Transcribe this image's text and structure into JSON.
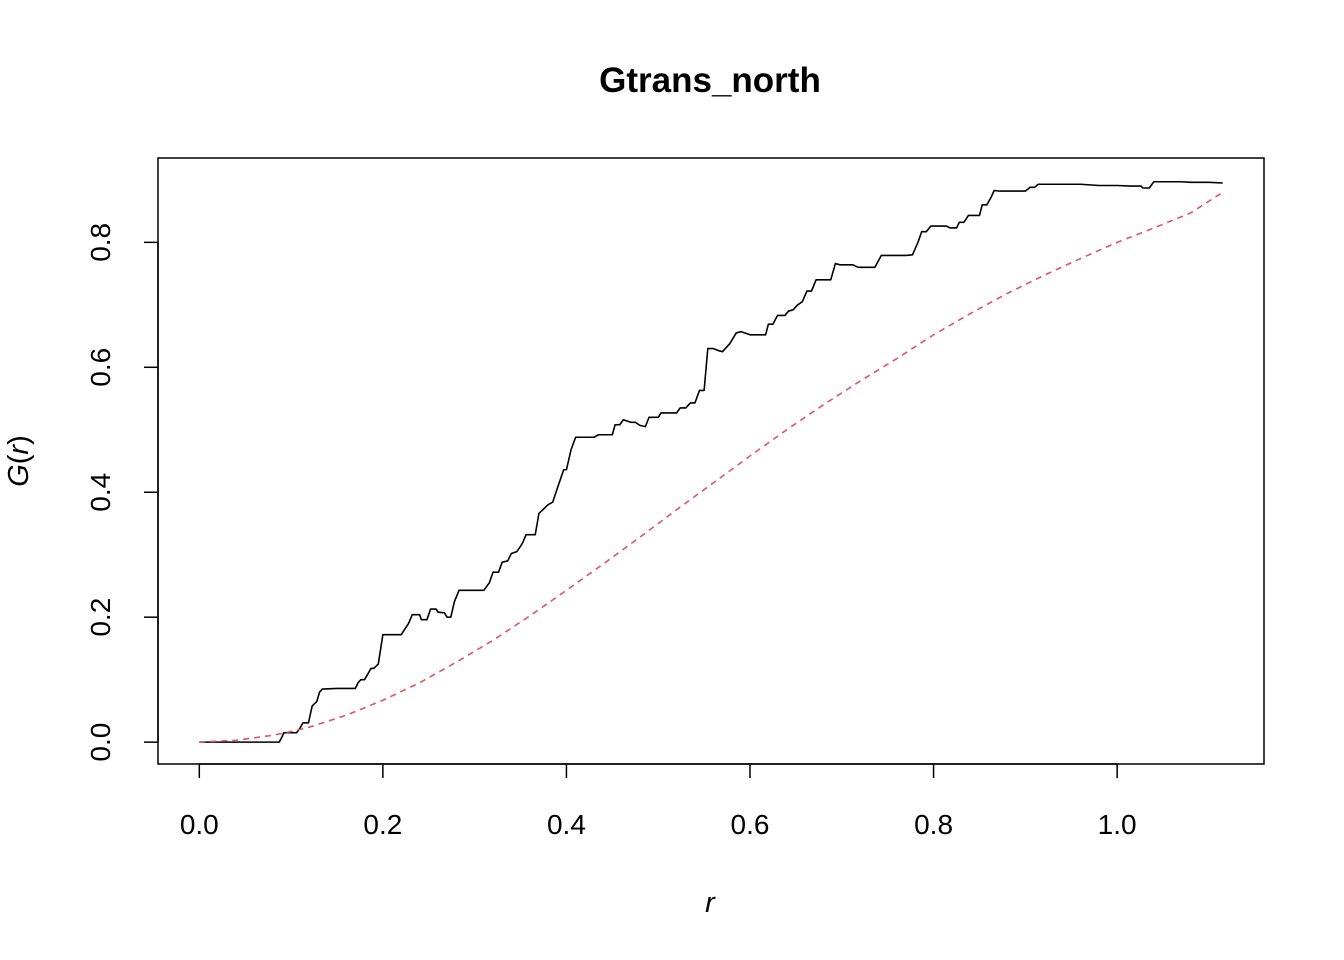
{
  "chart_data": {
    "type": "line",
    "title": "Gtrans_north",
    "xlabel": "r",
    "ylabel": {
      "fn": "G",
      "open": "(",
      "arg": "r",
      "close": ")"
    },
    "xlim": [
      -0.045,
      1.16
    ],
    "ylim": [
      -0.035,
      0.935
    ],
    "x_ticks": [
      {
        "value": 0.0,
        "label": "0.0"
      },
      {
        "value": 0.2,
        "label": "0.2"
      },
      {
        "value": 0.4,
        "label": "0.4"
      },
      {
        "value": 0.6,
        "label": "0.6"
      },
      {
        "value": 0.8,
        "label": "0.8"
      },
      {
        "value": 1.0,
        "label": "1.0"
      }
    ],
    "y_ticks": [
      {
        "value": 0.0,
        "label": "0.0"
      },
      {
        "value": 0.2,
        "label": "0.2"
      },
      {
        "value": 0.4,
        "label": "0.4"
      },
      {
        "value": 0.6,
        "label": "0.6"
      },
      {
        "value": 0.8,
        "label": "0.8"
      }
    ],
    "grid": false,
    "legend": "none",
    "series": [
      {
        "style": "solid",
        "color": "#000000",
        "points": [
          [
            0.0,
            0.0
          ],
          [
            0.087,
            0.0
          ],
          [
            0.09,
            0.008
          ],
          [
            0.092,
            0.015
          ],
          [
            0.106,
            0.015
          ],
          [
            0.11,
            0.023
          ],
          [
            0.113,
            0.031
          ],
          [
            0.119,
            0.031
          ],
          [
            0.121,
            0.045
          ],
          [
            0.123,
            0.058
          ],
          [
            0.128,
            0.065
          ],
          [
            0.131,
            0.08
          ],
          [
            0.134,
            0.085
          ],
          [
            0.15,
            0.086
          ],
          [
            0.17,
            0.086
          ],
          [
            0.173,
            0.095
          ],
          [
            0.176,
            0.1
          ],
          [
            0.18,
            0.1
          ],
          [
            0.184,
            0.11
          ],
          [
            0.187,
            0.118
          ],
          [
            0.19,
            0.118
          ],
          [
            0.195,
            0.125
          ],
          [
            0.2,
            0.172
          ],
          [
            0.22,
            0.172
          ],
          [
            0.228,
            0.19
          ],
          [
            0.232,
            0.204
          ],
          [
            0.24,
            0.204
          ],
          [
            0.242,
            0.196
          ],
          [
            0.248,
            0.196
          ],
          [
            0.252,
            0.213
          ],
          [
            0.258,
            0.213
          ],
          [
            0.26,
            0.208
          ],
          [
            0.267,
            0.207
          ],
          [
            0.27,
            0.2
          ],
          [
            0.274,
            0.2
          ],
          [
            0.278,
            0.225
          ],
          [
            0.283,
            0.243
          ],
          [
            0.31,
            0.243
          ],
          [
            0.316,
            0.255
          ],
          [
            0.32,
            0.272
          ],
          [
            0.326,
            0.272
          ],
          [
            0.33,
            0.288
          ],
          [
            0.336,
            0.29
          ],
          [
            0.34,
            0.302
          ],
          [
            0.346,
            0.305
          ],
          [
            0.352,
            0.318
          ],
          [
            0.356,
            0.332
          ],
          [
            0.366,
            0.332
          ],
          [
            0.37,
            0.366
          ],
          [
            0.38,
            0.38
          ],
          [
            0.385,
            0.384
          ],
          [
            0.39,
            0.406
          ],
          [
            0.397,
            0.436
          ],
          [
            0.4,
            0.436
          ],
          [
            0.405,
            0.468
          ],
          [
            0.41,
            0.488
          ],
          [
            0.43,
            0.488
          ],
          [
            0.435,
            0.492
          ],
          [
            0.45,
            0.492
          ],
          [
            0.453,
            0.508
          ],
          [
            0.458,
            0.508
          ],
          [
            0.462,
            0.516
          ],
          [
            0.47,
            0.512
          ],
          [
            0.475,
            0.512
          ],
          [
            0.48,
            0.507
          ],
          [
            0.486,
            0.505
          ],
          [
            0.49,
            0.52
          ],
          [
            0.5,
            0.52
          ],
          [
            0.503,
            0.527
          ],
          [
            0.52,
            0.527
          ],
          [
            0.524,
            0.535
          ],
          [
            0.53,
            0.535
          ],
          [
            0.535,
            0.543
          ],
          [
            0.54,
            0.543
          ],
          [
            0.545,
            0.563
          ],
          [
            0.55,
            0.563
          ],
          [
            0.554,
            0.63
          ],
          [
            0.56,
            0.63
          ],
          [
            0.565,
            0.627
          ],
          [
            0.57,
            0.625
          ],
          [
            0.578,
            0.638
          ],
          [
            0.585,
            0.655
          ],
          [
            0.59,
            0.657
          ],
          [
            0.6,
            0.652
          ],
          [
            0.617,
            0.652
          ],
          [
            0.62,
            0.669
          ],
          [
            0.625,
            0.669
          ],
          [
            0.63,
            0.683
          ],
          [
            0.638,
            0.683
          ],
          [
            0.642,
            0.69
          ],
          [
            0.647,
            0.692
          ],
          [
            0.652,
            0.7
          ],
          [
            0.657,
            0.705
          ],
          [
            0.662,
            0.722
          ],
          [
            0.667,
            0.722
          ],
          [
            0.672,
            0.74
          ],
          [
            0.688,
            0.74
          ],
          [
            0.693,
            0.766
          ],
          [
            0.698,
            0.764
          ],
          [
            0.712,
            0.764
          ],
          [
            0.718,
            0.76
          ],
          [
            0.736,
            0.76
          ],
          [
            0.743,
            0.779
          ],
          [
            0.77,
            0.779
          ],
          [
            0.777,
            0.78
          ],
          [
            0.783,
            0.8
          ],
          [
            0.787,
            0.817
          ],
          [
            0.792,
            0.817
          ],
          [
            0.797,
            0.826
          ],
          [
            0.814,
            0.826
          ],
          [
            0.818,
            0.823
          ],
          [
            0.825,
            0.823
          ],
          [
            0.828,
            0.832
          ],
          [
            0.833,
            0.832
          ],
          [
            0.838,
            0.843
          ],
          [
            0.85,
            0.843
          ],
          [
            0.853,
            0.86
          ],
          [
            0.858,
            0.86
          ],
          [
            0.863,
            0.873
          ],
          [
            0.866,
            0.883
          ],
          [
            0.872,
            0.882
          ],
          [
            0.9,
            0.882
          ],
          [
            0.905,
            0.888
          ],
          [
            0.91,
            0.888
          ],
          [
            0.914,
            0.893
          ],
          [
            0.96,
            0.893
          ],
          [
            0.98,
            0.891
          ],
          [
            1.0,
            0.891
          ],
          [
            1.015,
            0.89
          ],
          [
            1.026,
            0.89
          ],
          [
            1.028,
            0.887
          ],
          [
            1.035,
            0.887
          ],
          [
            1.04,
            0.897
          ],
          [
            1.07,
            0.897
          ],
          [
            1.08,
            0.896
          ],
          [
            1.1,
            0.896
          ],
          [
            1.115,
            0.895
          ]
        ]
      },
      {
        "style": "dashed",
        "color": "#DF536B",
        "points": [
          [
            0.0,
            0.0
          ],
          [
            0.04,
            0.003
          ],
          [
            0.08,
            0.011
          ],
          [
            0.1,
            0.017
          ],
          [
            0.12,
            0.024
          ],
          [
            0.16,
            0.043
          ],
          [
            0.2,
            0.067
          ],
          [
            0.24,
            0.095
          ],
          [
            0.28,
            0.128
          ],
          [
            0.32,
            0.163
          ],
          [
            0.36,
            0.202
          ],
          [
            0.4,
            0.243
          ],
          [
            0.44,
            0.285
          ],
          [
            0.48,
            0.328
          ],
          [
            0.52,
            0.372
          ],
          [
            0.56,
            0.415
          ],
          [
            0.6,
            0.458
          ],
          [
            0.64,
            0.5
          ],
          [
            0.68,
            0.54
          ],
          [
            0.72,
            0.578
          ],
          [
            0.76,
            0.614
          ],
          [
            0.8,
            0.652
          ],
          [
            0.84,
            0.686
          ],
          [
            0.88,
            0.718
          ],
          [
            0.92,
            0.747
          ],
          [
            0.96,
            0.774
          ],
          [
            1.0,
            0.8
          ],
          [
            1.04,
            0.823
          ],
          [
            1.08,
            0.847
          ],
          [
            1.115,
            0.88
          ]
        ]
      }
    ]
  }
}
